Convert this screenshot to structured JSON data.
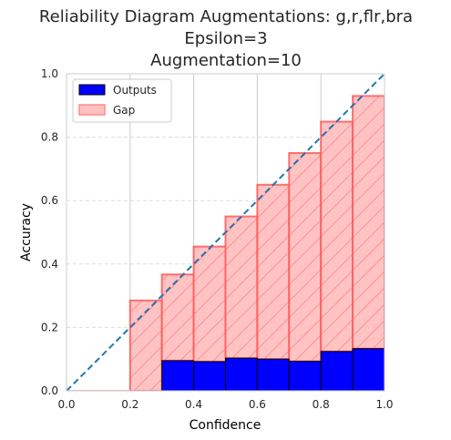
{
  "chart_data": {
    "type": "bar",
    "title_lines": [
      "Reliability Diagram Augmentations: g,r,flr,bra",
      "Epsilon=3",
      "Augmentation=10"
    ],
    "xlabel": "Confidence",
    "ylabel": "Accuracy",
    "xlim": [
      0,
      1
    ],
    "ylim": [
      0,
      1
    ],
    "xticks": [
      "0.0",
      "0.2",
      "0.4",
      "0.6",
      "0.8",
      "1.0"
    ],
    "yticks": [
      "0.0",
      "0.2",
      "0.4",
      "0.6",
      "0.8",
      "1.0"
    ],
    "grid": true,
    "legend_position": "upper-left",
    "bin_edges": [
      0.0,
      0.1,
      0.2,
      0.3,
      0.4,
      0.5,
      0.6,
      0.7,
      0.8,
      0.9,
      1.0
    ],
    "series": [
      {
        "name": "Outputs",
        "color": "#0000ff",
        "edge_color": "#000000",
        "values": [
          0,
          0,
          0,
          0.095,
          0.092,
          0.103,
          0.1,
          0.093,
          0.124,
          0.133
        ]
      },
      {
        "name": "Gap",
        "color": "#ffc0c0",
        "edge_color": "#ff5a5a",
        "bottom": [
          0,
          0,
          0,
          0.095,
          0.092,
          0.103,
          0.1,
          0.093,
          0.124,
          0.133
        ],
        "top": [
          0,
          0,
          0.285,
          0.367,
          0.455,
          0.55,
          0.65,
          0.75,
          0.849,
          0.93
        ]
      }
    ],
    "reference_line": {
      "from": [
        0,
        0
      ],
      "to": [
        1,
        1
      ],
      "color": "#1f77b4",
      "style": "dashed"
    }
  }
}
